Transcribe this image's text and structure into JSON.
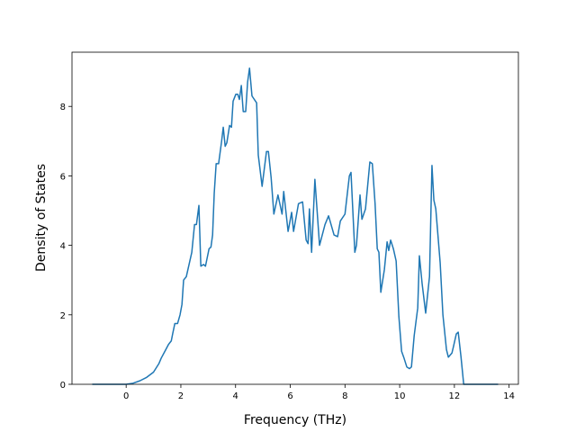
{
  "chart_data": {
    "type": "line",
    "xlabel": "Frequency (THz)",
    "ylabel": "Density of States",
    "xlim": [
      -1.98,
      14.34
    ],
    "ylim": [
      0,
      9.56
    ],
    "xticks": [
      0,
      2,
      4,
      6,
      8,
      10,
      12,
      14
    ],
    "yticks": [
      0,
      2,
      4,
      6,
      8
    ],
    "series": [
      {
        "color": "#1f77b4",
        "x": [
          -1.24,
          -0.5,
          0,
          0.25,
          0.5,
          0.75,
          1.0,
          1.2,
          1.28,
          1.45,
          1.55,
          1.65,
          1.7,
          1.78,
          1.88,
          1.97,
          2.04,
          2.1,
          2.2,
          2.3,
          2.4,
          2.5,
          2.57,
          2.66,
          2.73,
          2.83,
          2.9,
          3.03,
          3.1,
          3.16,
          3.22,
          3.29,
          3.38,
          3.49,
          3.55,
          3.62,
          3.68,
          3.78,
          3.85,
          3.91,
          4.01,
          4.08,
          4.14,
          4.21,
          4.28,
          4.37,
          4.44,
          4.51,
          4.6,
          4.77,
          4.83,
          4.97,
          5.13,
          5.2,
          5.3,
          5.4,
          5.55,
          5.7,
          5.76,
          5.92,
          6.05,
          6.12,
          6.3,
          6.45,
          6.58,
          6.65,
          6.7,
          6.78,
          6.9,
          7.07,
          7.27,
          7.4,
          7.6,
          7.73,
          7.83,
          8.0,
          8.16,
          8.22,
          8.36,
          8.42,
          8.55,
          8.62,
          8.75,
          8.91,
          9.0,
          9.1,
          9.18,
          9.24,
          9.31,
          9.44,
          9.54,
          9.6,
          9.67,
          9.77,
          9.87,
          9.97,
          10.07,
          10.16,
          10.26,
          10.36,
          10.43,
          10.53,
          10.66,
          10.72,
          10.82,
          10.95,
          11.09,
          11.18,
          11.25,
          11.32,
          11.48,
          11.58,
          11.71,
          11.78,
          11.91,
          11.97,
          12.07,
          12.14,
          12.24,
          12.34,
          13.0,
          13.6
        ],
        "values": [
          0,
          0,
          0,
          0.03,
          0.1,
          0.2,
          0.35,
          0.6,
          0.75,
          1.0,
          1.15,
          1.25,
          1.45,
          1.75,
          1.75,
          2.0,
          2.3,
          3.0,
          3.1,
          3.45,
          3.8,
          4.6,
          4.6,
          5.15,
          3.4,
          3.45,
          3.4,
          3.9,
          3.95,
          4.3,
          5.5,
          6.35,
          6.35,
          7.0,
          7.4,
          6.85,
          6.95,
          7.45,
          7.4,
          8.15,
          8.35,
          8.35,
          8.2,
          8.6,
          7.85,
          7.85,
          8.7,
          9.1,
          8.3,
          8.1,
          6.6,
          5.7,
          6.7,
          6.7,
          5.95,
          4.9,
          5.45,
          4.9,
          5.55,
          4.4,
          4.95,
          4.4,
          5.2,
          5.25,
          4.15,
          4.05,
          5.05,
          3.8,
          5.9,
          4.0,
          4.6,
          4.85,
          4.3,
          4.25,
          4.7,
          4.9,
          6.0,
          6.1,
          3.8,
          4.0,
          5.45,
          4.75,
          5.05,
          6.4,
          6.35,
          5.2,
          3.9,
          3.8,
          2.65,
          3.3,
          4.1,
          3.85,
          4.15,
          3.9,
          3.55,
          1.95,
          0.95,
          0.75,
          0.5,
          0.45,
          0.5,
          1.4,
          2.2,
          3.7,
          2.9,
          2.05,
          3.1,
          6.3,
          5.3,
          5.05,
          3.5,
          2.0,
          1.0,
          0.78,
          0.9,
          1.1,
          1.45,
          1.5,
          0.8,
          0,
          0,
          0
        ]
      }
    ]
  }
}
